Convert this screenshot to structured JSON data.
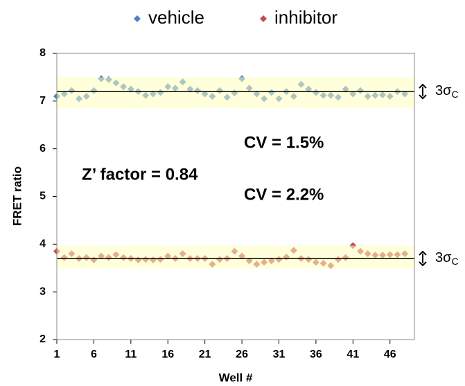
{
  "chart_data": {
    "type": "scatter",
    "x": [
      1,
      2,
      3,
      4,
      5,
      6,
      7,
      8,
      9,
      10,
      11,
      12,
      13,
      14,
      15,
      16,
      17,
      18,
      19,
      20,
      21,
      22,
      23,
      24,
      25,
      26,
      27,
      28,
      29,
      30,
      31,
      32,
      33,
      34,
      35,
      36,
      37,
      38,
      39,
      40,
      41,
      42,
      43,
      44,
      45,
      46,
      47,
      48
    ],
    "series": [
      {
        "name": "vehicle",
        "color": "#4f81bd",
        "values": [
          7.1,
          7.15,
          7.22,
          7.05,
          7.1,
          7.22,
          7.47,
          7.45,
          7.38,
          7.3,
          7.25,
          7.2,
          7.12,
          7.15,
          7.18,
          7.3,
          7.27,
          7.4,
          7.25,
          7.22,
          7.15,
          7.1,
          7.22,
          7.08,
          7.17,
          7.47,
          7.27,
          7.15,
          7.05,
          7.18,
          7.05,
          7.2,
          7.1,
          7.35,
          7.25,
          7.18,
          7.12,
          7.12,
          7.08,
          7.25,
          7.15,
          7.22,
          7.1,
          7.12,
          7.13,
          7.1,
          7.2,
          7.15
        ]
      },
      {
        "name": "inhibitor",
        "color": "#c0504d",
        "values": [
          3.85,
          3.72,
          3.8,
          3.7,
          3.72,
          3.67,
          3.75,
          3.72,
          3.78,
          3.72,
          3.7,
          3.67,
          3.68,
          3.67,
          3.68,
          3.75,
          3.7,
          3.8,
          3.7,
          3.7,
          3.7,
          3.58,
          3.68,
          3.7,
          3.85,
          3.75,
          3.65,
          3.58,
          3.62,
          3.65,
          3.68,
          3.73,
          3.87,
          3.7,
          3.68,
          3.62,
          3.6,
          3.55,
          3.68,
          3.72,
          3.97,
          3.85,
          3.8,
          3.77,
          3.77,
          3.78,
          3.78,
          3.8
        ]
      }
    ],
    "bands": [
      {
        "ymin": 6.85,
        "ymax": 7.5,
        "mean": 7.2,
        "label": "3σ",
        "label_sub": "C"
      },
      {
        "ymin": 3.49,
        "ymax": 3.97,
        "mean": 3.7,
        "label": "3σ",
        "label_sub": "C"
      }
    ],
    "band_color": "#ffffc0",
    "annotations": [
      "CV = 1.5%",
      "Z’ factor = 0.84",
      "CV = 2.2%"
    ],
    "x_label": "Well #",
    "y_label": "FRET ratio",
    "xlim": [
      1,
      49.3
    ],
    "ylim": [
      2,
      8
    ],
    "xticks": [
      1,
      6,
      11,
      16,
      21,
      26,
      31,
      36,
      41,
      46
    ],
    "yticks": [
      2,
      3,
      4,
      5,
      6,
      7,
      8
    ]
  }
}
